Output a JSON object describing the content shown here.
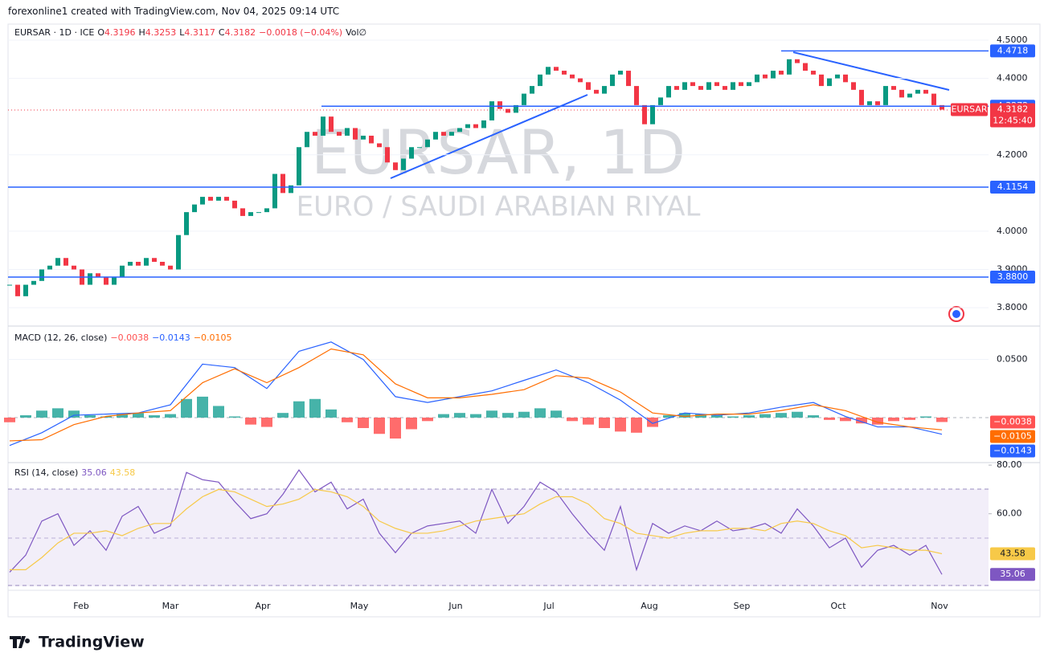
{
  "header": {
    "attribution": "forexonline1 created with TradingView.com, Nov 04, 2025 09:14 UTC"
  },
  "footer": {
    "brand": "TradingView"
  },
  "chart_data": [
    {
      "type": "candlestick",
      "title": "EURSAR, 1D",
      "subtitle": "EURO / SAUDI ARABIAN RIYAL",
      "symbol": "EURSAR · 1D · ICE",
      "ohlc": [
        [
          "O",
          "4.3196"
        ],
        [
          "H",
          "4.3253"
        ],
        [
          "L",
          "4.3117"
        ],
        [
          "C",
          "4.3182"
        ]
      ],
      "change": "−0.0018 (−0.04%)",
      "volume": "Vol∅",
      "up_color": "#089981",
      "down_color": "#f23645",
      "close": [
        3.86,
        3.83,
        3.86,
        3.87,
        3.9,
        3.91,
        3.93,
        3.91,
        3.9,
        3.86,
        3.89,
        3.88,
        3.86,
        3.88,
        3.91,
        3.92,
        3.91,
        3.93,
        3.92,
        3.91,
        3.9,
        3.99,
        4.05,
        4.07,
        4.09,
        4.08,
        4.09,
        4.08,
        4.06,
        4.04,
        4.05,
        4.05,
        4.06,
        4.15,
        4.1,
        4.12,
        4.22,
        4.26,
        4.25,
        4.3,
        4.26,
        4.25,
        4.27,
        4.24,
        4.25,
        4.23,
        4.22,
        4.18,
        4.16,
        4.19,
        4.22,
        4.22,
        4.24,
        4.26,
        4.25,
        4.26,
        4.27,
        4.28,
        4.27,
        4.29,
        4.34,
        4.32,
        4.31,
        4.33,
        4.36,
        4.38,
        4.41,
        4.43,
        4.42,
        4.41,
        4.4,
        4.39,
        4.37,
        4.36,
        4.38,
        4.41,
        4.42,
        4.38,
        4.33,
        4.28,
        4.33,
        4.35,
        4.38,
        4.37,
        4.39,
        4.38,
        4.37,
        4.39,
        4.38,
        4.37,
        4.39,
        4.38,
        4.39,
        4.41,
        4.4,
        4.42,
        4.41,
        4.45,
        4.44,
        4.42,
        4.41,
        4.38,
        4.4,
        4.41,
        4.39,
        4.37,
        4.33,
        4.34,
        4.33,
        4.38,
        4.37,
        4.35,
        4.36,
        4.37,
        4.36,
        4.33,
        4.3182
      ],
      "ylim": [
        3.754,
        4.542
      ],
      "yticks": [
        {
          "value": 3.8,
          "label": "3.8000"
        },
        {
          "value": 3.9,
          "label": "3.9000"
        },
        {
          "value": 4.0,
          "label": "4.0000"
        },
        {
          "value": 4.2,
          "label": "4.2000"
        },
        {
          "value": 4.4,
          "label": "4.4000"
        },
        {
          "value": 4.5,
          "label": "4.5000"
        }
      ],
      "levels": [
        4.4718,
        4.3272,
        4.1154,
        {
          "value": 3.88,
          "label": "3.8800"
        }
      ],
      "level_color": "#2962ff",
      "symbol_tag": "EURSAR",
      "countdown": "12:45:40"
    },
    {
      "type": "macd",
      "title": "MACD (12, 26, close)",
      "ylim": [
        -0.038,
        0.078
      ],
      "yticks": [
        {
          "value": 0.05,
          "label": "0.0500"
        }
      ],
      "histogram": {
        "positive_color": "#26a69a",
        "negative_color": "#ff5252",
        "last_label": "−0.0038",
        "values": [
          -0.004,
          0.002,
          0.006,
          0.008,
          0.006,
          0.002,
          0.001,
          0.003,
          0.004,
          0.002,
          0.003,
          0.016,
          0.018,
          0.01,
          0.001,
          -0.006,
          -0.008,
          0.004,
          0.014,
          0.016,
          0.007,
          -0.004,
          -0.009,
          -0.014,
          -0.018,
          -0.01,
          -0.003,
          0.003,
          0.004,
          0.003,
          0.006,
          0.004,
          0.005,
          0.008,
          0.006,
          -0.003,
          -0.006,
          -0.009,
          -0.012,
          -0.013,
          -0.008,
          0.002,
          0.004,
          0.003,
          0.002,
          0.001,
          0.002,
          0.003,
          0.004,
          0.005,
          0.002,
          -0.002,
          -0.003,
          -0.005,
          -0.006,
          -0.003,
          -0.002,
          0.001,
          -0.0038
        ]
      },
      "series": [
        {
          "color": "#2962ff",
          "last_label": "−0.0143",
          "values": [
            -0.024,
            -0.013,
            0.002,
            0.003,
            0.004,
            0.011,
            0.046,
            0.043,
            0.025,
            0.057,
            0.065,
            0.05,
            0.018,
            0.013,
            0.018,
            0.023,
            0.032,
            0.041,
            0.03,
            0.015,
            -0.005,
            0.004,
            0.002,
            0.004,
            0.009,
            0.013,
            0.001,
            -0.008,
            -0.008,
            -0.0143
          ]
        },
        {
          "color": "#ff6d00",
          "last_label": "−0.0105",
          "values": [
            -0.02,
            -0.019,
            -0.006,
            0.001,
            0.004,
            0.006,
            0.03,
            0.042,
            0.03,
            0.043,
            0.059,
            0.054,
            0.029,
            0.017,
            0.017,
            0.02,
            0.024,
            0.036,
            0.034,
            0.022,
            0.004,
            0.001,
            0.003,
            0.003,
            0.006,
            0.011,
            0.006,
            -0.004,
            -0.008,
            -0.0105
          ]
        }
      ]
    },
    {
      "type": "rsi",
      "title": "RSI (14, close)",
      "ylim": [
        29.2,
        80.7
      ],
      "yticks": [
        {
          "value": 60,
          "label": "60.00"
        },
        {
          "value": 80,
          "label": "80.00"
        }
      ],
      "series": [
        {
          "color": "#7e57c2",
          "values": [
            36,
            43,
            57,
            60,
            47,
            53,
            45,
            59,
            63,
            52,
            55,
            77,
            74,
            73,
            65,
            58,
            60,
            68,
            78,
            69,
            73,
            62,
            66,
            52,
            44,
            52,
            55,
            56,
            57,
            52,
            70,
            56,
            63,
            73,
            69,
            60,
            52,
            45,
            63,
            37,
            56,
            52,
            55,
            53,
            57,
            53,
            54,
            56,
            52,
            62,
            55,
            46,
            50,
            38,
            45,
            47,
            43,
            47,
            35.06
          ]
        },
        {
          "color": "#f7c948",
          "values": [
            37,
            37,
            42,
            48,
            52,
            52,
            53,
            51,
            54,
            56,
            56,
            62,
            67,
            70,
            69,
            66,
            63,
            64,
            66,
            70,
            69,
            67,
            63,
            57,
            54,
            52,
            52,
            53,
            55,
            57,
            58,
            59,
            60,
            64,
            67,
            67,
            64,
            58,
            56,
            52,
            51,
            50,
            52,
            53,
            53,
            54,
            54,
            53,
            56,
            57,
            56,
            53,
            51,
            46,
            47,
            46,
            45,
            45,
            43.58
          ]
        }
      ],
      "x_labels": [
        "Feb",
        "Mar",
        "Apr",
        "May",
        "Jun",
        "Jul",
        "Aug",
        "Sep",
        "Oct",
        "Nov"
      ]
    }
  ]
}
